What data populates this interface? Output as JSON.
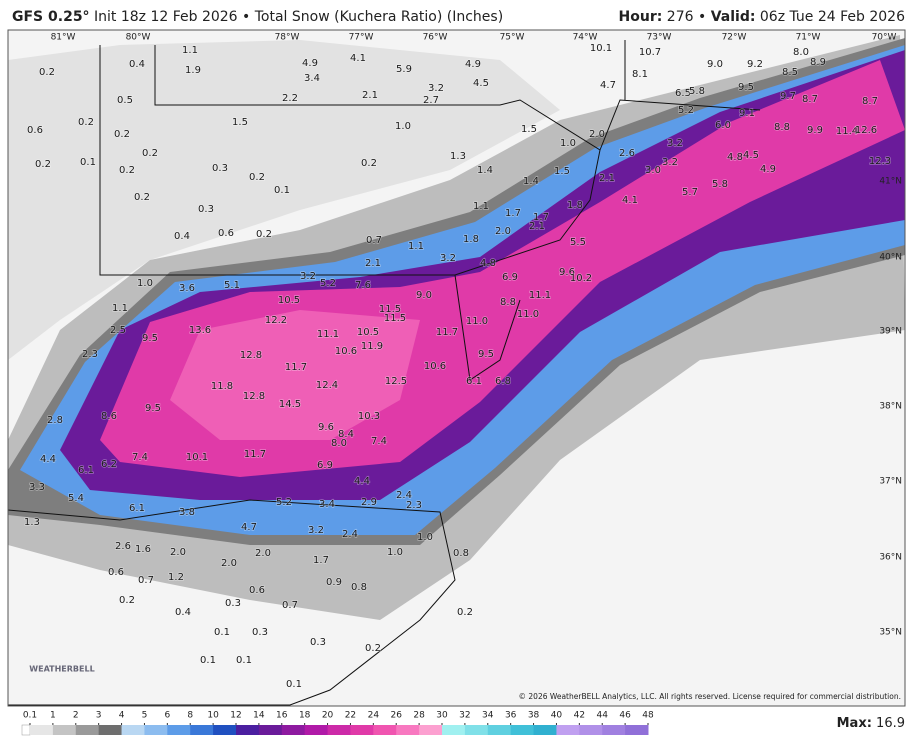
{
  "header": {
    "model": "GFS 0.25°",
    "run": "Init 18z 12 Feb 2026 • Total Snow (Kuchera Ratio) (Inches)",
    "hour_label": "Hour:",
    "hour": "276",
    "valid_label": "Valid:",
    "valid": "06z Tue 24 Feb 2026"
  },
  "map": {
    "lon_labels": [
      "81°W",
      "80°W",
      "78°W",
      "77°W",
      "76°W",
      "75°W",
      "74°W",
      "73°W",
      "72°W",
      "71°W",
      "70°W"
    ],
    "lat_labels": [
      "41°N",
      "40°N",
      "39°N",
      "38°N",
      "37°N",
      "36°N",
      "35°N"
    ],
    "snow_labels": [
      "1.1",
      "0.4",
      "1.9",
      "0.2",
      "4.9",
      "4.1",
      "3.4",
      "5.9",
      "4.9",
      "10.1",
      "10.7",
      "9.0",
      "9.2",
      "8.0",
      "8.9",
      "8.5",
      "8.1",
      "4.5",
      "3.2",
      "4.7",
      "9.5",
      "0.5",
      "2.2",
      "2.1",
      "2.7",
      "6.5",
      "5.8",
      "9.7",
      "8.7",
      "8.7",
      "0.6",
      "0.2",
      "1.5",
      "1.0",
      "1.5",
      "2.0",
      "5.2",
      "9.1",
      "6.0",
      "8.8",
      "9.9",
      "11.4",
      "12.6",
      "0.2",
      "1.0",
      "3.2",
      "0.2",
      "0.1",
      "0.2",
      "0.2",
      "0.3",
      "0.2",
      "0.2",
      "1.3",
      "2.6",
      "3.2",
      "4.8",
      "4.5",
      "4.9",
      "12.3",
      "1.4",
      "1.5",
      "3.0",
      "1.4",
      "2.1",
      "0.1",
      "0.2",
      "5.7",
      "5.8",
      "4.1",
      "0.3",
      "1.1",
      "1.8",
      "1.7",
      "1.7",
      "0.4",
      "0.6",
      "0.2",
      "2.0",
      "2.1",
      "0.7",
      "1.8",
      "5.5",
      "1.1",
      "3.2",
      "2.1",
      "4.8",
      "6.9",
      "9.6",
      "10.2",
      "3.2",
      "5.2",
      "7.6",
      "1.0",
      "3.6",
      "5.1",
      "9.0",
      "11.1",
      "10.5",
      "8.8",
      "11.0",
      "11.5",
      "11.5",
      "11.0",
      "12.2",
      "1.1",
      "13.6",
      "11.1",
      "10.5",
      "11.7",
      "11.9",
      "9.5",
      "2.5",
      "10.6",
      "9.5",
      "12.8",
      "11.7",
      "10.6",
      "2.3",
      "6.1",
      "6.8",
      "11.8",
      "12.4",
      "12.5",
      "12.8",
      "14.5",
      "9.5",
      "8.6",
      "10.3",
      "2.8",
      "9.6",
      "8.4",
      "8.0",
      "7.4",
      "4.4",
      "10.1",
      "11.7",
      "7.4",
      "6.9",
      "6.1",
      "6.2",
      "3.3",
      "4.4",
      "5.4",
      "2.4",
      "5.2",
      "3.4",
      "2.9",
      "2.3",
      "6.1",
      "3.8",
      "1.3",
      "4.7",
      "3.2",
      "2.4",
      "1.0",
      "2.6",
      "1.6",
      "2.0",
      "2.0",
      "1.0",
      "0.8",
      "1.7",
      "2.0",
      "0.6",
      "0.7",
      "1.2",
      "0.9",
      "0.8",
      "0.6",
      "0.2",
      "0.4",
      "0.3",
      "0.7",
      "0.2",
      "0.1",
      "0.3",
      "0.3",
      "0.1",
      "0.1",
      "0.2",
      "0.1"
    ]
  },
  "colorbar": {
    "ticks": [
      0.1,
      1,
      2,
      3,
      4,
      5,
      6,
      8,
      10,
      12,
      14,
      16,
      18,
      20,
      22,
      24,
      26,
      28,
      30,
      32,
      34,
      36,
      38,
      40,
      42,
      44,
      46,
      48
    ],
    "colors": [
      "#e6e6e6",
      "#c4c4c4",
      "#9a9a9a",
      "#6e6e6e",
      "#b9d7f2",
      "#8cbcef",
      "#5d9ce8",
      "#3a78d8",
      "#2050c0",
      "#4b1fa0",
      "#6a1b9a",
      "#8e1aa0",
      "#b01aa8",
      "#cc2aa8",
      "#e03aa8",
      "#f055b0",
      "#f878c0",
      "#fca0d0",
      "#a0f0f0",
      "#80e0e8",
      "#60d0e0",
      "#40c0d8",
      "#30b0d0",
      "#c0a0f0",
      "#b090e8",
      "#a080e0",
      "#9070d8"
    ]
  },
  "footer": {
    "max_label": "Max:",
    "max": "16.9",
    "copyright": "© 2026 WeatherBELL Analytics, LLC. All rights reserved. License required for commercial distribution.",
    "logo": "WEATHERBELL"
  }
}
